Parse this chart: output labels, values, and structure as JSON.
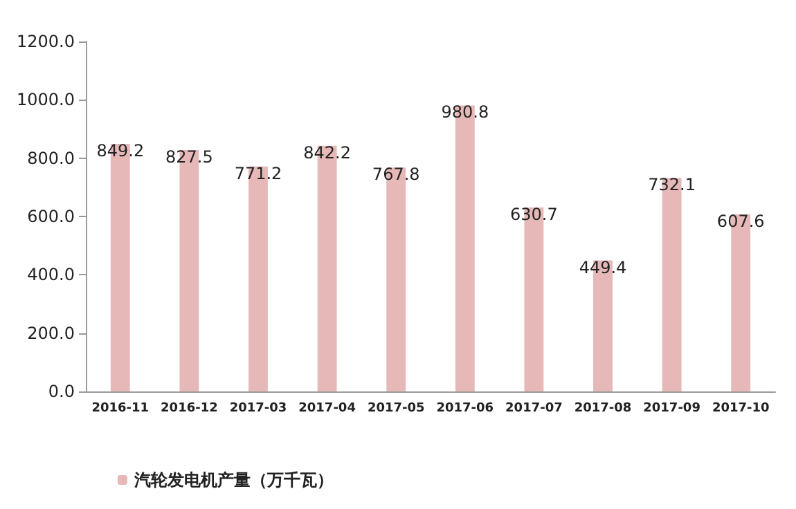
{
  "chart_data": {
    "type": "bar",
    "categories": [
      "2016-11",
      "2016-12",
      "2017-03",
      "2017-04",
      "2017-05",
      "2017-06",
      "2017-07",
      "2017-08",
      "2017-09",
      "2017-10"
    ],
    "series": [
      {
        "name": "汽轮发电机产量（万千瓦）",
        "color": "#e6b9b8",
        "values": [
          849.2,
          827.5,
          771.2,
          842.2,
          767.8,
          980.8,
          630.7,
          449.4,
          732.1,
          607.6
        ]
      }
    ],
    "ylim": [
      0,
      1200
    ],
    "yticks": [
      {
        "value": 0,
        "label": "0.0"
      },
      {
        "value": 200,
        "label": "200.0"
      },
      {
        "value": 400,
        "label": "400.0"
      },
      {
        "value": 600,
        "label": "600.0"
      },
      {
        "value": 800,
        "label": "800.0"
      },
      {
        "value": 1000,
        "label": "1000.0"
      },
      {
        "value": 1200,
        "label": "1200.0"
      }
    ],
    "data_labels": true,
    "legend": "bottom left",
    "grid": false
  }
}
